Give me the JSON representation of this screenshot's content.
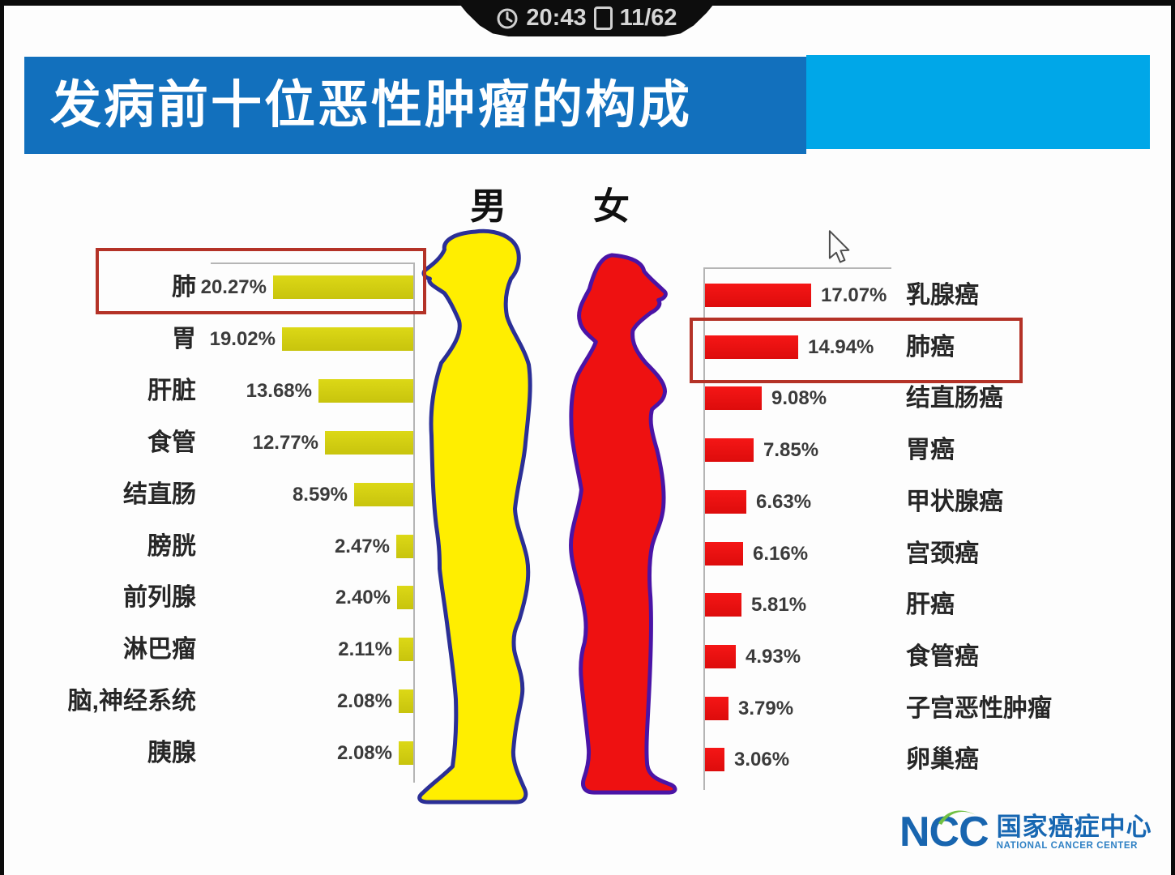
{
  "status_bar": {
    "time": "20:43",
    "slide": "11/62"
  },
  "header": {
    "title": "发病前十位恶性肿瘤的构成"
  },
  "chart_data": [
    {
      "type": "bar",
      "gender": "男",
      "side": "left",
      "orientation": "bars-extend-left-from-right-axis",
      "unit": "%",
      "bar_color": "#d4d013",
      "categories": [
        "肺",
        "胃",
        "肝脏",
        "食管",
        "结直肠",
        "膀胱",
        "前列腺",
        "淋巴瘤",
        "脑,神经系统",
        "胰腺"
      ],
      "values": [
        20.27,
        19.02,
        13.68,
        12.77,
        8.59,
        2.47,
        2.4,
        2.11,
        2.08,
        2.08
      ],
      "highlighted_category": "肺"
    },
    {
      "type": "bar",
      "gender": "女",
      "side": "right",
      "orientation": "bars-extend-right-from-left-axis",
      "unit": "%",
      "bar_color": "#ee1111",
      "categories": [
        "乳腺癌",
        "肺癌",
        "结直肠癌",
        "胃癌",
        "甲状腺癌",
        "宫颈癌",
        "肝癌",
        "食管癌",
        "子宫恶性肿瘤",
        "卵巢癌"
      ],
      "values": [
        17.07,
        14.94,
        9.08,
        7.85,
        6.63,
        6.16,
        5.81,
        4.93,
        3.79,
        3.06
      ],
      "highlighted_category": "肺癌"
    }
  ],
  "logo": {
    "abbr": "NCC",
    "name_cn": "国家癌症中心",
    "name_en": "NATIONAL CANCER CENTER"
  },
  "colors": {
    "banner_dark": "#1270bd",
    "banner_light": "#00a7e8",
    "male_body": "#ffee00",
    "male_outline": "#2b2f96",
    "female_body": "#ee1111",
    "female_outline": "#4a14a6",
    "highlight_border": "#b43227"
  }
}
